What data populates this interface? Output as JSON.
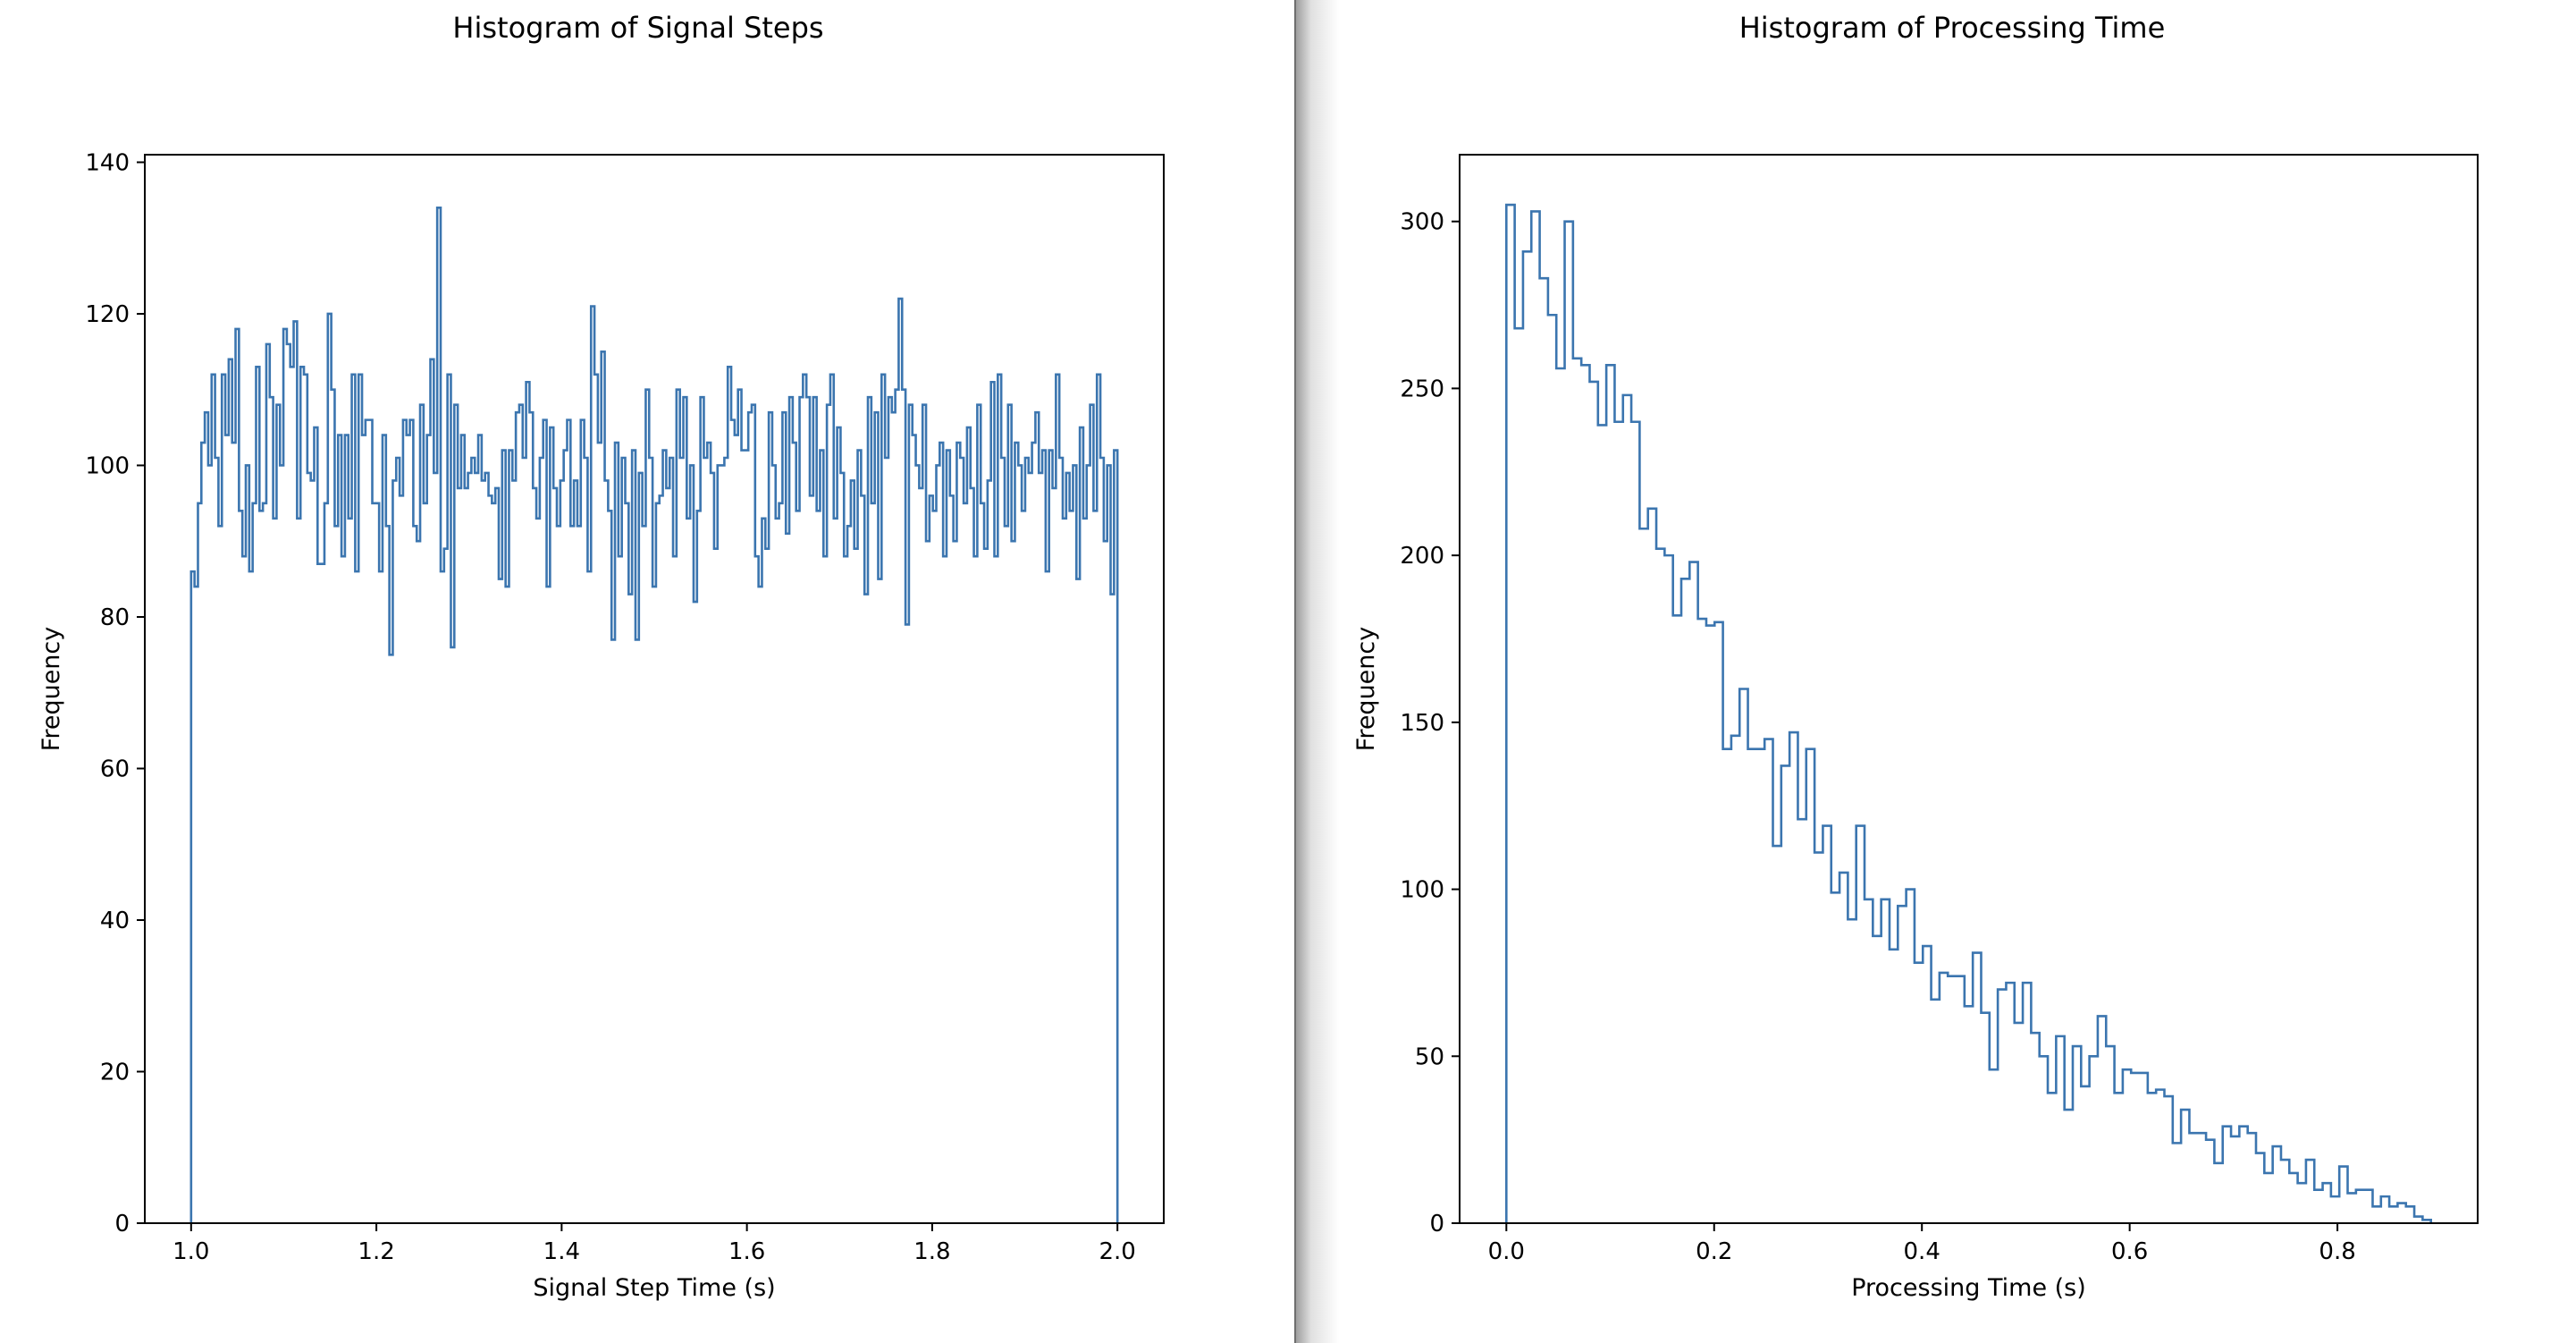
{
  "chart_data": [
    {
      "type": "histogram",
      "title": "Histogram of Signal Steps",
      "xlabel": "Signal Step Time (s)",
      "ylabel": "Frequency",
      "xlim": [
        0.95,
        2.05
      ],
      "ylim": [
        0,
        141
      ],
      "xticks": [
        1.0,
        1.2,
        1.4,
        1.6,
        1.8,
        2.0
      ],
      "xtick_labels": [
        "1.0",
        "1.2",
        "1.4",
        "1.6",
        "1.8",
        "2.0"
      ],
      "yticks": [
        0,
        20,
        40,
        60,
        80,
        100,
        120,
        140
      ],
      "ytick_labels": [
        "0",
        "20",
        "40",
        "60",
        "80",
        "100",
        "120",
        "140"
      ],
      "bin_start": 1.0,
      "bin_end": 2.0,
      "histtype": "step",
      "color": "#3b75af",
      "values": [
        86,
        84,
        95,
        103,
        107,
        100,
        112,
        101,
        92,
        112,
        104,
        114,
        103,
        118,
        94,
        88,
        100,
        86,
        95,
        113,
        94,
        95,
        116,
        109,
        93,
        108,
        100,
        118,
        116,
        113,
        119,
        93,
        113,
        112,
        99,
        98,
        105,
        87,
        87,
        95,
        120,
        110,
        92,
        104,
        88,
        104,
        93,
        112,
        86,
        112,
        104,
        106,
        106,
        95,
        95,
        86,
        104,
        92,
        75,
        98,
        101,
        96,
        106,
        104,
        106,
        92,
        90,
        108,
        95,
        104,
        114,
        99,
        134,
        86,
        89,
        112,
        76,
        108,
        97,
        104,
        97,
        99,
        101,
        99,
        104,
        98,
        99,
        96,
        95,
        97,
        85,
        102,
        84,
        102,
        98,
        107,
        108,
        101,
        111,
        107,
        97,
        93,
        101,
        106,
        84,
        105,
        97,
        92,
        98,
        102,
        106,
        92,
        98,
        92,
        106,
        101,
        86,
        121,
        112,
        103,
        115,
        98,
        94,
        77,
        103,
        88,
        101,
        95,
        83,
        102,
        77,
        99,
        92,
        110,
        101,
        84,
        95,
        96,
        102,
        97,
        101,
        88,
        110,
        101,
        109,
        93,
        100,
        82,
        94,
        109,
        101,
        103,
        99,
        89,
        100,
        100,
        101,
        113,
        106,
        104,
        110,
        102,
        102,
        107,
        108,
        88,
        84,
        93,
        89,
        107,
        100,
        93,
        95,
        107,
        91,
        109,
        103,
        94,
        109,
        112,
        109,
        96,
        109,
        94,
        102,
        88,
        108,
        112,
        93,
        105,
        99,
        88,
        92,
        98,
        89,
        102,
        96,
        83,
        109,
        95,
        107,
        85,
        112,
        101,
        109,
        107,
        110,
        122,
        110,
        79,
        108,
        104,
        100,
        97,
        108,
        90,
        96,
        94,
        100,
        103,
        88,
        102,
        96,
        90,
        103,
        101,
        95,
        105,
        97,
        88,
        108,
        95,
        89,
        98,
        111,
        88,
        112,
        101,
        92,
        108,
        90,
        103,
        100,
        94,
        101,
        99,
        103,
        107,
        99,
        102,
        86,
        102,
        97,
        112,
        101,
        93,
        99,
        94,
        100,
        85,
        105,
        93,
        100,
        108,
        94,
        112,
        101,
        90,
        100,
        83,
        102
      ],
      "note": "values are per-bin counts across the range"
    },
    {
      "type": "histogram",
      "title": "Histogram of Processing Time",
      "xlabel": "Processing Time (s)",
      "ylabel": "Frequency",
      "xlim": [
        -0.045,
        0.935
      ],
      "ylim": [
        0,
        320
      ],
      "xticks": [
        0.0,
        0.2,
        0.4,
        0.6,
        0.8
      ],
      "xtick_labels": [
        "0.0",
        "0.2",
        "0.4",
        "0.6",
        "0.8"
      ],
      "yticks": [
        0,
        50,
        100,
        150,
        200,
        250,
        300
      ],
      "ytick_labels": [
        "0",
        "50",
        "100",
        "150",
        "200",
        "250",
        "300"
      ],
      "bin_start": 0.0,
      "bin_end": 0.89,
      "histtype": "step",
      "color": "#3b75af",
      "values": [
        305,
        268,
        291,
        303,
        283,
        272,
        256,
        300,
        259,
        257,
        252,
        239,
        257,
        240,
        248,
        240,
        208,
        214,
        202,
        200,
        182,
        193,
        198,
        181,
        179,
        180,
        142,
        146,
        160,
        142,
        142,
        145,
        113,
        137,
        147,
        121,
        142,
        111,
        119,
        99,
        105,
        91,
        119,
        97,
        86,
        97,
        82,
        95,
        100,
        78,
        83,
        67,
        75,
        74,
        74,
        65,
        81,
        63,
        46,
        70,
        72,
        60,
        72,
        57,
        50,
        39,
        56,
        34,
        53,
        41,
        50,
        62,
        53,
        39,
        46,
        45,
        45,
        39,
        40,
        38,
        24,
        34,
        27,
        27,
        25,
        18,
        29,
        26,
        29,
        27,
        21,
        15,
        23,
        19,
        15,
        12,
        19,
        10,
        12,
        8,
        17,
        9,
        10,
        10,
        5,
        8,
        5,
        6,
        5,
        2,
        1
      ],
      "note": "values are per-bin counts across the range"
    }
  ]
}
